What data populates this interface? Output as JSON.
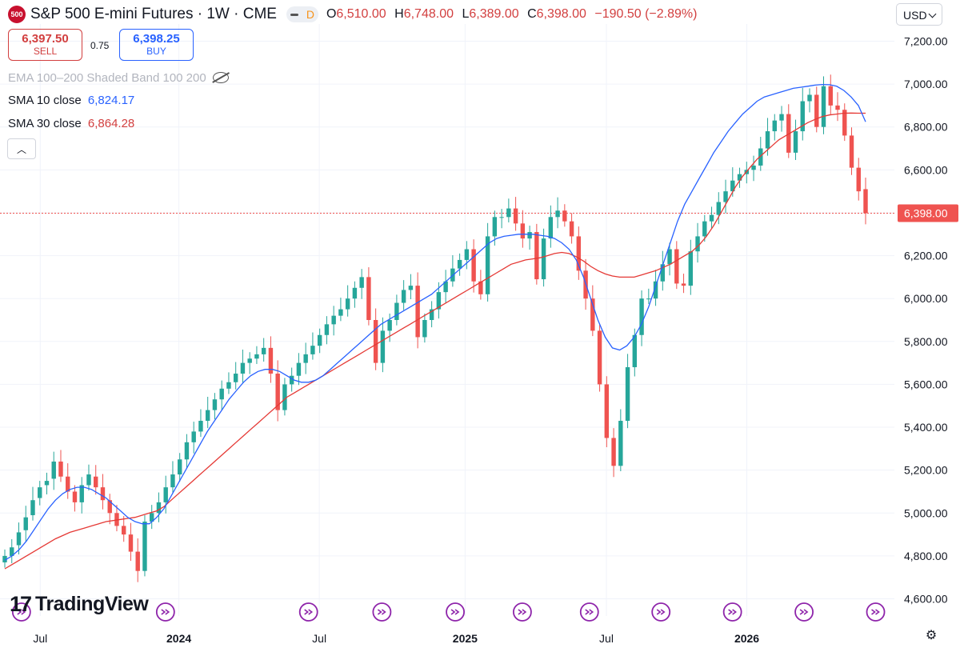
{
  "header": {
    "symbol_badge": "500",
    "title": "S&P 500 E-mini Futures · 1W · CME",
    "delayed_badge": "D",
    "open_label": "O",
    "open": "6,510.00",
    "high_label": "H",
    "high": "6,748.00",
    "low_label": "L",
    "low": "6,389.00",
    "close_label": "C",
    "close": "6,398.00",
    "change": "−190.50 (−2.89%)"
  },
  "trade": {
    "sell_price": "6,397.50",
    "sell_label": "SELL",
    "spread": "0.75",
    "buy_price": "6,398.25",
    "buy_label": "BUY"
  },
  "indicators": {
    "ema_band": "EMA 100–200 Shaded Band 100 200",
    "sma10_label": "SMA 10 close",
    "sma10_value": "6,824.17",
    "sma30_label": "SMA 30 close",
    "sma30_value": "6,864.28"
  },
  "currency": "USD",
  "brand": "TradingView",
  "colors": {
    "up": "#26a69a",
    "down": "#ef5350",
    "sma10": "#2962ff",
    "sma30": "#e53935",
    "last_price_bg": "#ef5350",
    "event_icon": "#8e24aa"
  },
  "chart_data": {
    "type": "candlestick",
    "interval": "1W",
    "ylim": [
      4520,
      7280
    ],
    "y_ticks": [
      "7,200.00",
      "7,000.00",
      "6,800.00",
      "6,600.00",
      "6,400.00",
      "6,200.00",
      "6,000.00",
      "5,800.00",
      "5,600.00",
      "5,400.00",
      "5,200.00",
      "5,000.00",
      "4,800.00",
      "4,600.00"
    ],
    "x_ticks": [
      "Jul",
      "2024",
      "Jul",
      "2025",
      "Jul",
      "2026"
    ],
    "last_price_label": "6,398.00",
    "last_price": 6398,
    "grid": true,
    "series": [
      {
        "name": "SMA 10 close",
        "type": "line",
        "values": [
          4780,
          4800,
          4830,
          4870,
          4920,
          4970,
          5020,
          5060,
          5090,
          5110,
          5120,
          5120,
          5110,
          5090,
          5070,
          5040,
          5010,
          4980,
          4960,
          4950,
          4950,
          4980,
          5020,
          5080,
          5140,
          5200,
          5260,
          5320,
          5380,
          5430,
          5480,
          5530,
          5570,
          5610,
          5640,
          5660,
          5670,
          5670,
          5660,
          5640,
          5620,
          5610,
          5610,
          5620,
          5640,
          5670,
          5700,
          5730,
          5760,
          5790,
          5820,
          5850,
          5880,
          5900,
          5920,
          5940,
          5960,
          5980,
          6000,
          6020,
          6050,
          6080,
          6110,
          6140,
          6170,
          6200,
          6230,
          6260,
          6280,
          6290,
          6295,
          6300,
          6300,
          6300,
          6295,
          6290,
          6280,
          6260,
          6230,
          6180,
          6100,
          6000,
          5900,
          5820,
          5770,
          5760,
          5780,
          5820,
          5880,
          5960,
          6060,
          6160,
          6260,
          6360,
          6440,
          6500,
          6560,
          6620,
          6680,
          6730,
          6780,
          6820,
          6860,
          6890,
          6920,
          6940,
          6950,
          6960,
          6970,
          6980,
          6985,
          6990,
          6995,
          6998,
          6997,
          6990,
          6970,
          6940,
          6900,
          6824
        ]
      },
      {
        "name": "SMA 30 close",
        "type": "line",
        "values": [
          4740,
          4760,
          4780,
          4800,
          4820,
          4840,
          4860,
          4880,
          4895,
          4910,
          4920,
          4930,
          4940,
          4950,
          4960,
          4965,
          4970,
          4975,
          4980,
          4990,
          5000,
          5010,
          5030,
          5060,
          5090,
          5120,
          5150,
          5180,
          5210,
          5240,
          5270,
          5300,
          5330,
          5360,
          5390,
          5420,
          5450,
          5480,
          5510,
          5540,
          5560,
          5580,
          5600,
          5620,
          5640,
          5660,
          5680,
          5700,
          5720,
          5740,
          5760,
          5780,
          5800,
          5820,
          5840,
          5860,
          5880,
          5900,
          5920,
          5940,
          5960,
          5980,
          6000,
          6020,
          6040,
          6060,
          6080,
          6100,
          6120,
          6140,
          6160,
          6170,
          6180,
          6185,
          6190,
          6200,
          6210,
          6215,
          6210,
          6195,
          6175,
          6150,
          6130,
          6115,
          6105,
          6100,
          6100,
          6100,
          6110,
          6120,
          6130,
          6145,
          6160,
          6180,
          6200,
          6220,
          6250,
          6290,
          6340,
          6400,
          6460,
          6520,
          6570,
          6610,
          6650,
          6680,
          6710,
          6740,
          6760,
          6780,
          6800,
          6820,
          6835,
          6848,
          6856,
          6860,
          6864,
          6865,
          6864,
          6864
        ]
      }
    ],
    "ohlc_close": [
      4800,
      4840,
      4910,
      4980,
      5060,
      5120,
      5150,
      5240,
      5170,
      5100,
      5050,
      5130,
      5180,
      5120,
      5060,
      5000,
      4940,
      4900,
      4820,
      4730,
      4960,
      5000,
      5050,
      5120,
      5180,
      5250,
      5330,
      5380,
      5430,
      5480,
      5530,
      5580,
      5610,
      5650,
      5700,
      5720,
      5740,
      5770,
      5650,
      5480,
      5600,
      5640,
      5700,
      5740,
      5780,
      5830,
      5880,
      5920,
      5950,
      6000,
      6050,
      6100,
      5900,
      5700,
      5850,
      5900,
      5980,
      6040,
      6060,
      5820,
      5900,
      5950,
      6030,
      6080,
      6140,
      6180,
      6230,
      6080,
      6020,
      6290,
      6380,
      6380,
      6420,
      6350,
      6280,
      6310,
      6090,
      6280,
      6380,
      6410,
      6360,
      6290,
      6130,
      6000,
      5850,
      5600,
      5350,
      5220,
      5430,
      5680,
      5830,
      6000,
      6000,
      6080,
      6160,
      6230,
      6070,
      6060,
      6220,
      6290,
      6360,
      6390,
      6450,
      6500,
      6550,
      6580,
      6600,
      6620,
      6700,
      6780,
      6830,
      6860,
      6680,
      6780,
      6920,
      6950,
      6800,
      6990,
      6900,
      6880,
      6760,
      6610,
      6500,
      6398
    ],
    "ohlc_open": [
      4770,
      4800,
      4850,
      4920,
      4990,
      5070,
      5130,
      5160,
      5240,
      5170,
      5100,
      5050,
      5130,
      5170,
      5120,
      5060,
      5000,
      4940,
      4900,
      4820,
      4730,
      4960,
      5000,
      5050,
      5120,
      5180,
      5250,
      5330,
      5380,
      5430,
      5480,
      5530,
      5580,
      5610,
      5650,
      5700,
      5720,
      5740,
      5770,
      5650,
      5480,
      5600,
      5640,
      5700,
      5740,
      5780,
      5830,
      5880,
      5920,
      5950,
      6000,
      6050,
      6100,
      5900,
      5700,
      5850,
      5900,
      5980,
      6040,
      6060,
      5820,
      5900,
      5950,
      6030,
      6080,
      6140,
      6180,
      6230,
      6080,
      6020,
      6290,
      6380,
      6380,
      6420,
      6350,
      6280,
      6310,
      6090,
      6280,
      6380,
      6410,
      6360,
      6290,
      6130,
      6000,
      5850,
      5600,
      5350,
      5220,
      5430,
      5680,
      5830,
      6000,
      6000,
      6080,
      6160,
      6230,
      6070,
      6060,
      6220,
      6290,
      6360,
      6390,
      6450,
      6500,
      6550,
      6580,
      6600,
      6620,
      6700,
      6780,
      6830,
      6860,
      6680,
      6780,
      6920,
      6950,
      6800,
      6990,
      6900,
      6880,
      6760,
      6610,
      6510
    ],
    "event_marker_x_fraction": [
      0.024,
      0.185,
      0.345,
      0.427,
      0.509,
      0.584,
      0.659,
      0.739,
      0.819,
      0.899,
      0.979
    ]
  }
}
